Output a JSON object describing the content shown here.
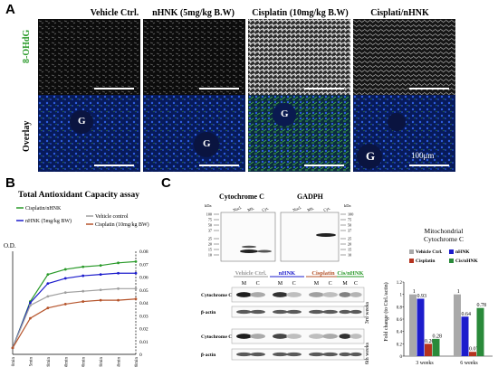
{
  "panelA": {
    "letter": "A",
    "columns": [
      "Vehicle Ctrl.",
      "nHNK (5mg/kg B.W)",
      "Cisplatin (10mg/kg B.W)",
      "Cisplati/nHNK"
    ],
    "rows": [
      "8-OHdG",
      "Overlay"
    ],
    "g_label": "G",
    "scale_label": "100μm"
  },
  "panelB": {
    "letter": "B",
    "title": "Total Antioxidant Capacity assay",
    "legend": [
      "Cisplatin/nHNK",
      "Vehicle control",
      "nHNK (5mg/kg BW)",
      "Cisplatin (10mg/kg BW)"
    ],
    "colors": {
      "cis_nhnk": "#2a9a2a",
      "vehicle": "#a0a0a0",
      "nhnk": "#1c1ccc",
      "cisplatin": "#b5532a"
    }
  },
  "chart_data": {
    "type": "line",
    "title": "Total Antioxidant Capacity assay",
    "ylabel": "O.D.",
    "xlabel": "",
    "categories": [
      "0min",
      "5min",
      "20min",
      "60min",
      "90min",
      "120min",
      "150min",
      "180min"
    ],
    "ylim": [
      0,
      0.08
    ],
    "yticks": [
      "0",
      "0.01",
      "0.02",
      "0.03",
      "0.04",
      "0.05",
      "0.06",
      "0.07",
      "0.08"
    ],
    "series": [
      {
        "name": "Cisplatin/nHNK",
        "values": [
          0.005,
          0.041,
          0.062,
          0.066,
          0.068,
          0.069,
          0.071,
          0.072
        ]
      },
      {
        "name": "nHNK (5mg/kg BW)",
        "values": [
          0.005,
          0.04,
          0.055,
          0.059,
          0.061,
          0.062,
          0.063,
          0.063
        ]
      },
      {
        "name": "Vehicle control",
        "values": [
          0.005,
          0.038,
          0.045,
          0.048,
          0.049,
          0.05,
          0.051,
          0.051
        ]
      },
      {
        "name": "Cisplatin (10mg/kg BW)",
        "values": [
          0.005,
          0.028,
          0.036,
          0.039,
          0.041,
          0.042,
          0.042,
          0.043
        ]
      }
    ]
  },
  "panelC": {
    "letter": "C",
    "blot_titles": [
      "Cytochrome C",
      "GADPH"
    ],
    "kda": "kDa",
    "mw_left": [
      "100",
      "75",
      "50",
      "37",
      "25",
      "20",
      "15",
      "10"
    ],
    "mw_right": [
      "100",
      "75",
      "50",
      "37",
      "25",
      "20",
      "15",
      "10"
    ],
    "fractions": [
      "Nucl.",
      "Mit.",
      "Cyt."
    ],
    "groups": [
      "Vehicle Ctrl.",
      "nHNK",
      "Cisplatin",
      "Cis/nHNK"
    ],
    "group_colors": [
      "#999999",
      "#1c1ccc",
      "#b5532a",
      "#2a9a2a"
    ],
    "mc": [
      "M",
      "C"
    ],
    "blot_rows": [
      "Cytochrome C",
      "β-actin",
      "Cytochrome C",
      "β-actin"
    ],
    "weeks": [
      "3rd weeks",
      "6th weeks"
    ]
  },
  "bar_chart": {
    "title_line1": "Mitochondrial",
    "title_line2": "Cytochrome C",
    "ylabel": "Fold change (to Ctrl./actin)",
    "legend": [
      "Vehicle Ctrl.",
      "nHNK",
      "Cisplatin",
      "Cis/nHNK"
    ],
    "colors": [
      "#a9a9a9",
      "#1c1ccc",
      "#b5331f",
      "#2a8a3a"
    ],
    "categories": [
      "3 weeks",
      "6 weeks"
    ],
    "values": [
      [
        1,
        0.93,
        0.2,
        0.28
      ],
      [
        1,
        0.64,
        0.07,
        0.78
      ]
    ],
    "value_labels": [
      [
        "1",
        "0.93",
        "0.20",
        "0.28"
      ],
      [
        "1",
        "0.64",
        "0.07",
        "0.78"
      ]
    ],
    "yticks": [
      "0",
      "0.2",
      "0.4",
      "0.6",
      "0.8",
      "1",
      "1.2"
    ],
    "ylim": [
      0,
      1.2
    ]
  }
}
